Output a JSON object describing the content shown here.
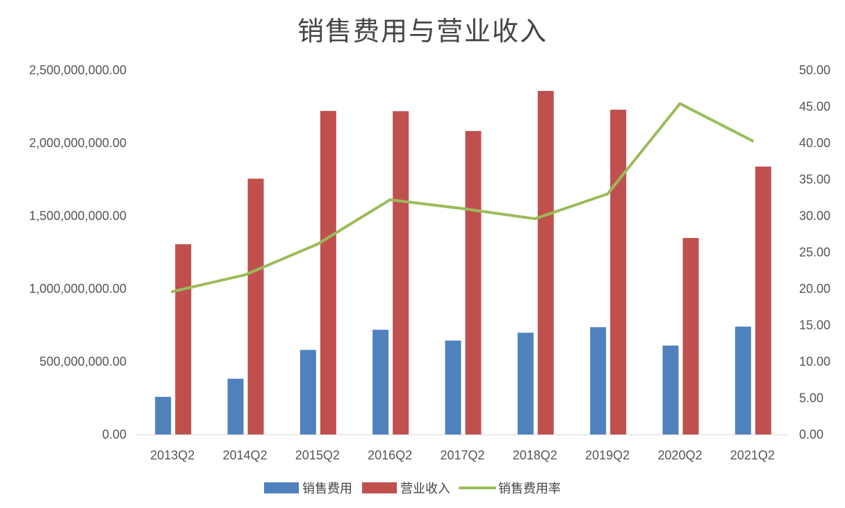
{
  "chart_data": {
    "type": "bar",
    "title": "销售费用与营业收入",
    "categories": [
      "2013Q2",
      "2014Q2",
      "2015Q2",
      "2016Q2",
      "2017Q2",
      "2018Q2",
      "2019Q2",
      "2020Q2",
      "2021Q2"
    ],
    "series": [
      {
        "name": "销售费用",
        "type": "bar",
        "axis": "left",
        "color": "#4F81BD",
        "values": [
          258000000,
          382000000,
          580000000,
          718000000,
          644000000,
          698000000,
          736000000,
          610000000,
          740000000
        ]
      },
      {
        "name": "营业收入",
        "type": "bar",
        "axis": "left",
        "color": "#C0504D",
        "values": [
          1305000000,
          1755000000,
          2220000000,
          2218000000,
          2082000000,
          2357000000,
          2228000000,
          1348000000,
          1838000000
        ]
      },
      {
        "name": "销售费用率",
        "type": "line",
        "axis": "right",
        "color": "#9BBB59",
        "values": [
          19.6,
          21.9,
          26.1,
          32.2,
          31.0,
          29.6,
          33.0,
          45.4,
          40.3
        ]
      }
    ],
    "y_left": {
      "min": 0,
      "max": 2500000000,
      "ticks": [
        "0.00",
        "500,000,000.00",
        "1,000,000,000.00",
        "1,500,000,000.00",
        "2,000,000,000.00",
        "2,500,000,000.00"
      ]
    },
    "y_right": {
      "min": 0,
      "max": 50,
      "ticks": [
        "0.00",
        "5.00",
        "10.00",
        "15.00",
        "20.00",
        "25.00",
        "30.00",
        "35.00",
        "40.00",
        "45.00",
        "50.00"
      ]
    },
    "legend_position": "bottom",
    "grid": false
  }
}
